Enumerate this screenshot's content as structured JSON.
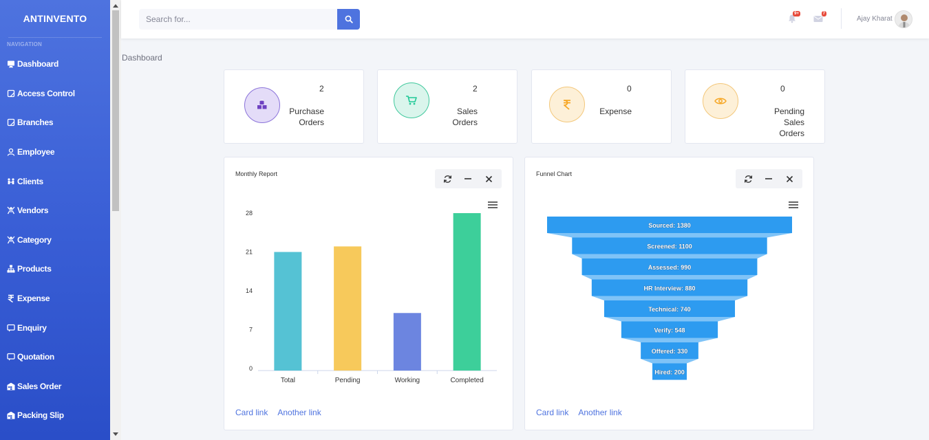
{
  "app": {
    "brand": "ANTINVENTO"
  },
  "sidebar": {
    "heading": "NAVIGATION",
    "items": [
      {
        "label": "Dashboard",
        "icon": "monitor-icon"
      },
      {
        "label": "Access Control",
        "icon": "square-icon"
      },
      {
        "label": "Branches",
        "icon": "square-icon"
      },
      {
        "label": "Employee",
        "icon": "user-icon"
      },
      {
        "label": "Clients",
        "icon": "people-icon"
      },
      {
        "label": "Vendors",
        "icon": "vendor-icon"
      },
      {
        "label": "Category",
        "icon": "vendor-icon"
      },
      {
        "label": "Products",
        "icon": "sitemap-icon"
      },
      {
        "label": "Expense",
        "icon": "rupee-icon"
      },
      {
        "label": "Enquiry",
        "icon": "message-icon"
      },
      {
        "label": "Quotation",
        "icon": "message-icon"
      },
      {
        "label": "Sales Order",
        "icon": "warehouse-icon"
      },
      {
        "label": "Packing Slip",
        "icon": "warehouse-icon"
      }
    ]
  },
  "topbar": {
    "search_placeholder": "Search for...",
    "alerts_badge": "9+",
    "messages_badge": "7",
    "username": "Ajay Kharat"
  },
  "breadcrumb": "Dashboard",
  "stats": [
    {
      "value": "2",
      "label_lines": [
        "Purchase",
        "Orders"
      ],
      "icon": "cubes-icon",
      "color": "#6f42c1"
    },
    {
      "value": "2",
      "label_lines": [
        "Sales",
        "Orders"
      ],
      "icon": "cart-icon",
      "color": "#20c997"
    },
    {
      "value": "0",
      "label_lines": [
        "Expense"
      ],
      "icon": "rupee-icon",
      "color": "#f6c23e"
    },
    {
      "value": "0",
      "label_lines": [
        "Pending",
        "Sales",
        "Orders"
      ],
      "icon": "eye-icon",
      "color": "#f6c23e"
    }
  ],
  "monthly": {
    "title": "Monthly Report",
    "links": [
      "Card link",
      "Another link"
    ]
  },
  "funnel": {
    "title": "Funnel Chart",
    "links": [
      "Card link",
      "Another link"
    ]
  },
  "chart_data": [
    {
      "type": "bar",
      "title": "",
      "categories": [
        "Total",
        "Pending",
        "Working",
        "Completed"
      ],
      "values": [
        21,
        22,
        10,
        28
      ],
      "colors": [
        "#55c2d4",
        "#f7c95b",
        "#6c85e0",
        "#3dcf9a"
      ],
      "ylim": [
        0,
        28
      ],
      "yticks": [
        0,
        7,
        14,
        21,
        28
      ],
      "grid": false,
      "legend": false
    },
    {
      "type": "funnel",
      "title": "",
      "categories": [
        "Sourced",
        "Screened",
        "Assessed",
        "HR Interview",
        "Technical",
        "Verify",
        "Offered",
        "Hired"
      ],
      "values": [
        1380,
        1100,
        990,
        880,
        740,
        548,
        330,
        200
      ],
      "color": "#2d9bf0"
    }
  ]
}
